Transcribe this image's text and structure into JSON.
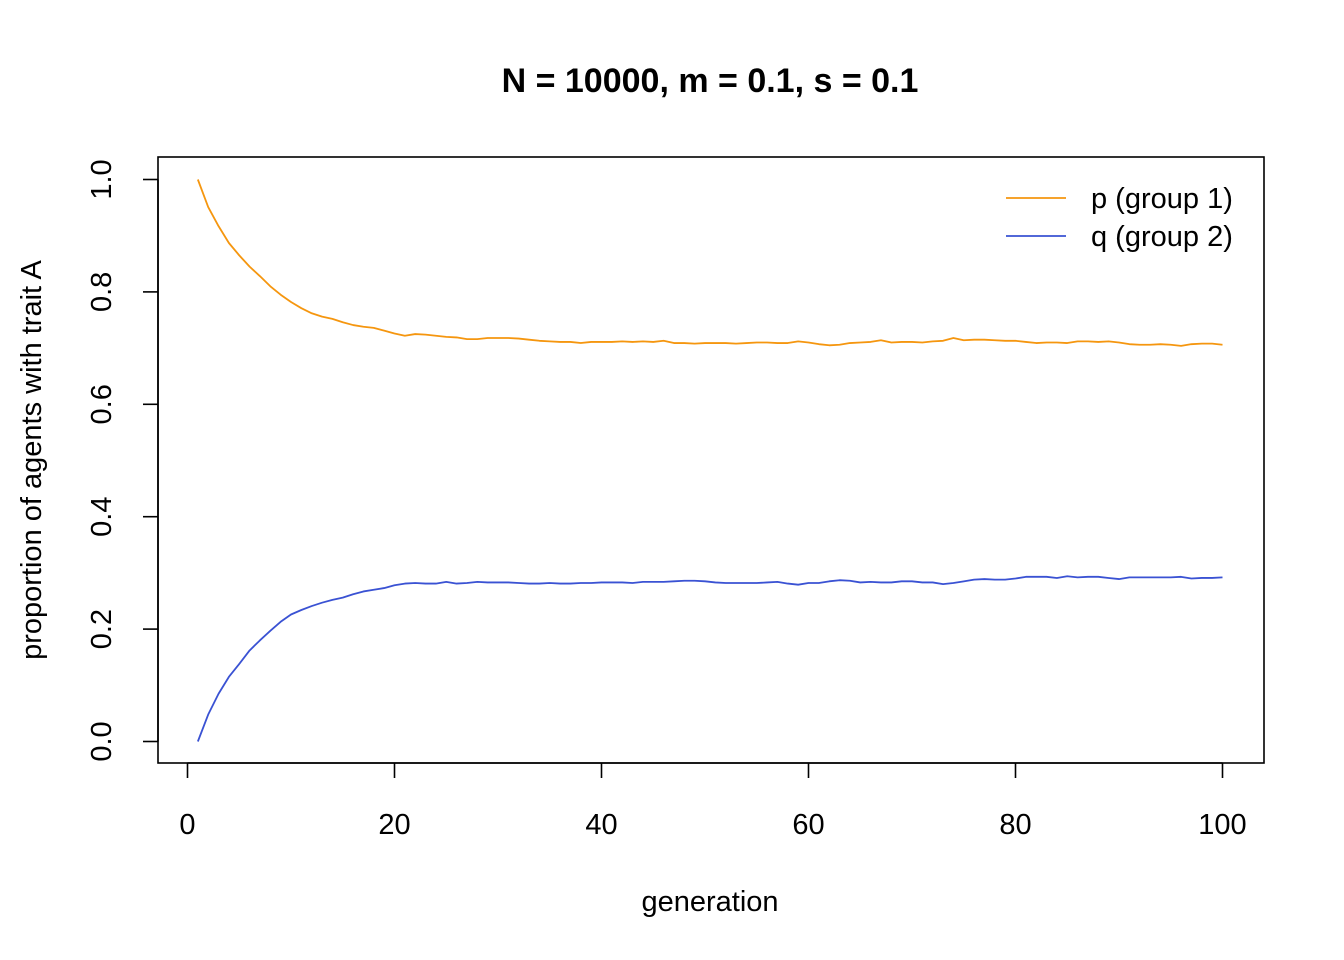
{
  "chart_data": {
    "type": "line",
    "title": "N = 10000, m = 0.1, s = 0.1",
    "xlabel": "generation",
    "ylabel": "proportion of agents with trait A",
    "xlim": [
      1,
      100
    ],
    "ylim": [
      0,
      1
    ],
    "xticks": [
      "0",
      "20",
      "40",
      "60",
      "80",
      "100"
    ],
    "yticks": [
      "0.0",
      "0.2",
      "0.4",
      "0.6",
      "0.8",
      "1.0"
    ],
    "legend_position": "top-right",
    "grid": false,
    "x": [
      1,
      2,
      3,
      4,
      5,
      6,
      7,
      8,
      9,
      10,
      11,
      12,
      13,
      14,
      15,
      16,
      17,
      18,
      19,
      20,
      21,
      22,
      23,
      24,
      25,
      26,
      27,
      28,
      29,
      30,
      31,
      32,
      33,
      34,
      35,
      36,
      37,
      38,
      39,
      40,
      41,
      42,
      43,
      44,
      45,
      46,
      47,
      48,
      49,
      50,
      51,
      52,
      53,
      54,
      55,
      56,
      57,
      58,
      59,
      60,
      61,
      62,
      63,
      64,
      65,
      66,
      67,
      68,
      69,
      70,
      71,
      72,
      73,
      74,
      75,
      76,
      77,
      78,
      79,
      80,
      81,
      82,
      83,
      84,
      85,
      86,
      87,
      88,
      89,
      90,
      91,
      92,
      93,
      94,
      95,
      96,
      97,
      98,
      99,
      100
    ],
    "series": [
      {
        "name": "p (group 1)",
        "color": "#f5960f",
        "values": [
          1.0,
          0.951,
          0.917,
          0.887,
          0.865,
          0.845,
          0.828,
          0.81,
          0.795,
          0.782,
          0.771,
          0.762,
          0.756,
          0.752,
          0.746,
          0.741,
          0.738,
          0.736,
          0.731,
          0.726,
          0.722,
          0.725,
          0.724,
          0.722,
          0.72,
          0.719,
          0.716,
          0.716,
          0.718,
          0.718,
          0.718,
          0.717,
          0.715,
          0.713,
          0.712,
          0.711,
          0.711,
          0.709,
          0.711,
          0.711,
          0.711,
          0.712,
          0.711,
          0.712,
          0.711,
          0.713,
          0.709,
          0.709,
          0.708,
          0.709,
          0.709,
          0.709,
          0.708,
          0.709,
          0.71,
          0.71,
          0.709,
          0.709,
          0.712,
          0.71,
          0.707,
          0.705,
          0.706,
          0.709,
          0.71,
          0.711,
          0.714,
          0.71,
          0.711,
          0.711,
          0.71,
          0.712,
          0.713,
          0.718,
          0.714,
          0.715,
          0.715,
          0.714,
          0.713,
          0.713,
          0.711,
          0.709,
          0.71,
          0.71,
          0.709,
          0.712,
          0.712,
          0.711,
          0.712,
          0.71,
          0.707,
          0.706,
          0.706,
          0.707,
          0.706,
          0.704,
          0.707,
          0.708,
          0.708,
          0.706
        ]
      },
      {
        "name": "q (group 2)",
        "color": "#3a52d3",
        "values": [
          0.0,
          0.048,
          0.085,
          0.115,
          0.138,
          0.162,
          0.18,
          0.197,
          0.213,
          0.226,
          0.234,
          0.241,
          0.247,
          0.252,
          0.256,
          0.262,
          0.267,
          0.27,
          0.273,
          0.278,
          0.281,
          0.282,
          0.281,
          0.281,
          0.284,
          0.281,
          0.282,
          0.284,
          0.283,
          0.283,
          0.283,
          0.282,
          0.281,
          0.281,
          0.282,
          0.281,
          0.281,
          0.282,
          0.282,
          0.283,
          0.283,
          0.283,
          0.282,
          0.284,
          0.284,
          0.284,
          0.285,
          0.286,
          0.286,
          0.285,
          0.283,
          0.282,
          0.282,
          0.282,
          0.282,
          0.283,
          0.284,
          0.281,
          0.279,
          0.282,
          0.282,
          0.285,
          0.287,
          0.286,
          0.283,
          0.284,
          0.283,
          0.283,
          0.285,
          0.285,
          0.283,
          0.283,
          0.28,
          0.282,
          0.285,
          0.288,
          0.289,
          0.288,
          0.288,
          0.29,
          0.293,
          0.293,
          0.293,
          0.291,
          0.294,
          0.292,
          0.293,
          0.293,
          0.291,
          0.289,
          0.292,
          0.292,
          0.292,
          0.292,
          0.292,
          0.293,
          0.29,
          0.291,
          0.291,
          0.292
        ]
      }
    ]
  }
}
